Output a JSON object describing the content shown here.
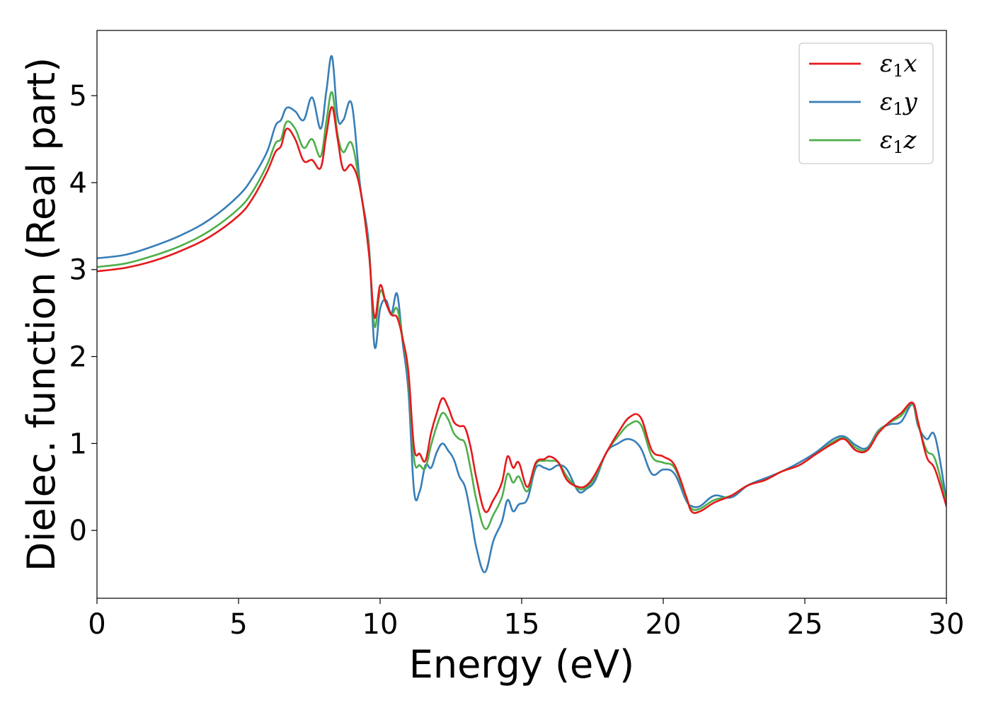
{
  "chart_data": {
    "type": "line",
    "xlabel": "Energy (eV)",
    "ylabel": "Dielec. function (Real part)",
    "xlim": [
      0,
      30
    ],
    "ylim": [
      -0.78,
      5.75
    ],
    "xticks": [
      0,
      5,
      10,
      15,
      20,
      25,
      30
    ],
    "xtick_labels": [
      "0",
      "5",
      "10",
      "15",
      "20",
      "25",
      "30"
    ],
    "yticks": [
      0,
      1,
      2,
      3,
      4,
      5
    ],
    "ytick_labels": [
      "0",
      "1",
      "2",
      "3",
      "4",
      "5"
    ],
    "grid": false,
    "legend_position": "top-right",
    "series": [
      {
        "name": "ε₁x",
        "legend_base": "ε",
        "legend_sub": "1",
        "legend_tail": "x",
        "color": "#e41a1c",
        "x": [
          0,
          1,
          2,
          3,
          4,
          5,
          5.5,
          6,
          6.3,
          6.5,
          6.7,
          7.0,
          7.3,
          7.6,
          7.9,
          8.1,
          8.3,
          8.5,
          8.7,
          9.0,
          9.3,
          9.6,
          9.8,
          10.0,
          10.2,
          10.4,
          10.6,
          10.8,
          11.0,
          11.2,
          11.4,
          11.6,
          11.8,
          12.0,
          12.2,
          12.4,
          12.6,
          12.8,
          13.0,
          13.2,
          13.4,
          13.7,
          14.0,
          14.3,
          14.5,
          14.7,
          14.9,
          15.2,
          15.5,
          15.8,
          16.0,
          16.3,
          16.6,
          17.0,
          17.3,
          17.6,
          18.0,
          18.4,
          18.8,
          19.2,
          19.6,
          20.0,
          20.4,
          20.8,
          21.0,
          21.3,
          21.8,
          22.4,
          23.0,
          23.6,
          24.2,
          24.8,
          25.4,
          26.0,
          26.4,
          26.8,
          27.2,
          27.6,
          28.0,
          28.4,
          28.8,
          29.0,
          29.3,
          29.6,
          30.0
        ],
        "y": [
          2.98,
          3.02,
          3.1,
          3.22,
          3.38,
          3.62,
          3.82,
          4.12,
          4.35,
          4.42,
          4.62,
          4.5,
          4.25,
          4.26,
          4.17,
          4.55,
          4.87,
          4.5,
          4.15,
          4.2,
          3.92,
          3.2,
          2.45,
          2.82,
          2.62,
          2.48,
          2.45,
          2.2,
          1.82,
          0.95,
          0.88,
          0.8,
          1.12,
          1.35,
          1.52,
          1.42,
          1.25,
          1.2,
          1.18,
          0.95,
          0.6,
          0.22,
          0.35,
          0.55,
          0.85,
          0.72,
          0.78,
          0.5,
          0.78,
          0.82,
          0.85,
          0.78,
          0.58,
          0.5,
          0.52,
          0.65,
          0.9,
          1.12,
          1.3,
          1.3,
          0.92,
          0.85,
          0.75,
          0.4,
          0.22,
          0.22,
          0.32,
          0.4,
          0.52,
          0.58,
          0.68,
          0.75,
          0.88,
          1.0,
          1.05,
          0.92,
          0.92,
          1.12,
          1.25,
          1.35,
          1.47,
          1.25,
          0.85,
          0.7,
          0.28
        ]
      },
      {
        "name": "ε₁y",
        "legend_base": "ε",
        "legend_sub": "1",
        "legend_tail": "y",
        "color": "#377eb8",
        "x": [
          0,
          1,
          2,
          3,
          4,
          5,
          5.5,
          6,
          6.3,
          6.5,
          6.7,
          7.0,
          7.3,
          7.6,
          7.9,
          8.1,
          8.3,
          8.5,
          8.7,
          9.0,
          9.3,
          9.6,
          9.8,
          10.0,
          10.2,
          10.4,
          10.6,
          10.8,
          11.0,
          11.2,
          11.4,
          11.6,
          11.8,
          12.0,
          12.2,
          12.4,
          12.6,
          12.8,
          13.0,
          13.2,
          13.4,
          13.7,
          14.0,
          14.3,
          14.5,
          14.7,
          14.9,
          15.2,
          15.5,
          15.8,
          16.0,
          16.3,
          16.6,
          17.0,
          17.3,
          17.6,
          18.0,
          18.4,
          18.8,
          19.2,
          19.6,
          20.0,
          20.4,
          20.8,
          21.0,
          21.3,
          21.8,
          22.4,
          23.0,
          23.6,
          24.2,
          24.8,
          25.4,
          26.0,
          26.4,
          26.8,
          27.2,
          27.6,
          28.0,
          28.4,
          28.8,
          29.0,
          29.3,
          29.6,
          30.0
        ],
        "y": [
          3.13,
          3.17,
          3.27,
          3.4,
          3.58,
          3.85,
          4.06,
          4.35,
          4.65,
          4.72,
          4.86,
          4.82,
          4.72,
          4.98,
          4.62,
          5.05,
          5.45,
          4.75,
          4.72,
          4.9,
          3.95,
          3.3,
          2.12,
          2.55,
          2.65,
          2.5,
          2.72,
          2.15,
          1.6,
          0.45,
          0.45,
          0.75,
          0.72,
          0.9,
          1.0,
          0.92,
          0.82,
          0.62,
          0.5,
          0.18,
          -0.2,
          -0.48,
          -0.12,
          0.1,
          0.35,
          0.22,
          0.3,
          0.36,
          0.72,
          0.72,
          0.7,
          0.75,
          0.7,
          0.45,
          0.48,
          0.58,
          0.9,
          1.0,
          1.05,
          0.95,
          0.65,
          0.7,
          0.65,
          0.35,
          0.28,
          0.28,
          0.4,
          0.38,
          0.52,
          0.6,
          0.68,
          0.78,
          0.9,
          1.05,
          1.08,
          0.98,
          0.95,
          1.15,
          1.22,
          1.25,
          1.45,
          1.2,
          1.05,
          1.08,
          0.35
        ]
      },
      {
        "name": "ε₁z",
        "legend_base": "ε",
        "legend_sub": "1",
        "legend_tail": "z",
        "color": "#4daf4a",
        "x": [
          0,
          1,
          2,
          3,
          4,
          5,
          5.5,
          6,
          6.3,
          6.5,
          6.7,
          7.0,
          7.3,
          7.6,
          7.9,
          8.1,
          8.3,
          8.5,
          8.7,
          9.0,
          9.3,
          9.6,
          9.8,
          10.0,
          10.2,
          10.4,
          10.6,
          10.8,
          11.0,
          11.2,
          11.4,
          11.6,
          11.8,
          12.0,
          12.2,
          12.4,
          12.6,
          12.8,
          13.0,
          13.2,
          13.4,
          13.7,
          14.0,
          14.3,
          14.5,
          14.7,
          14.9,
          15.2,
          15.5,
          15.8,
          16.0,
          16.3,
          16.6,
          17.0,
          17.3,
          17.6,
          18.0,
          18.4,
          18.8,
          19.2,
          19.6,
          20.0,
          20.4,
          20.8,
          21.0,
          21.3,
          21.8,
          22.4,
          23.0,
          23.6,
          24.2,
          24.8,
          25.4,
          26.0,
          26.4,
          26.8,
          27.2,
          27.6,
          28.0,
          28.4,
          28.8,
          29.0,
          29.3,
          29.6,
          30.0
        ],
        "y": [
          3.03,
          3.07,
          3.16,
          3.28,
          3.45,
          3.7,
          3.9,
          4.2,
          4.45,
          4.5,
          4.7,
          4.62,
          4.4,
          4.5,
          4.3,
          4.7,
          5.04,
          4.55,
          4.35,
          4.45,
          3.92,
          3.25,
          2.35,
          2.75,
          2.62,
          2.48,
          2.55,
          2.2,
          1.75,
          0.82,
          0.75,
          0.72,
          0.98,
          1.2,
          1.35,
          1.28,
          1.12,
          1.05,
          1.0,
          0.7,
          0.35,
          0.02,
          0.18,
          0.38,
          0.65,
          0.55,
          0.62,
          0.45,
          0.76,
          0.8,
          0.8,
          0.78,
          0.62,
          0.48,
          0.5,
          0.62,
          0.9,
          1.08,
          1.22,
          1.22,
          0.85,
          0.78,
          0.72,
          0.38,
          0.25,
          0.25,
          0.35,
          0.4,
          0.52,
          0.58,
          0.68,
          0.75,
          0.88,
          1.02,
          1.06,
          0.95,
          0.93,
          1.14,
          1.24,
          1.32,
          1.46,
          1.22,
          0.92,
          0.82,
          0.32
        ]
      }
    ]
  }
}
